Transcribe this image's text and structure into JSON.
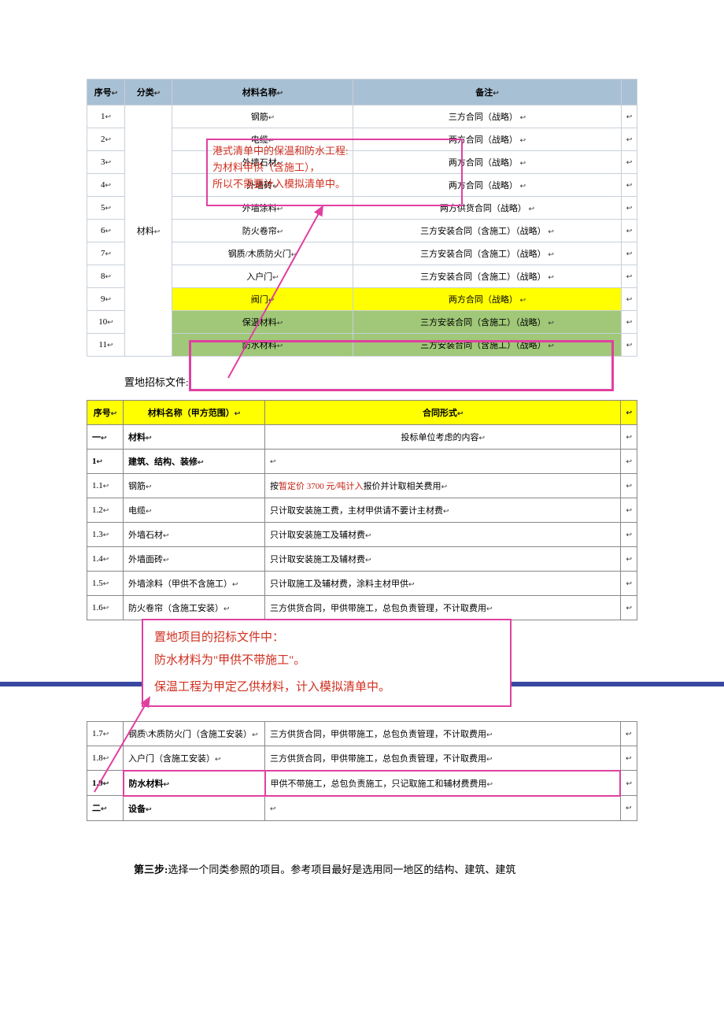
{
  "table1": {
    "headers": [
      "序号",
      "分类",
      "材料名称",
      "备注"
    ],
    "category_merged": "材料",
    "rows": [
      {
        "n": "1",
        "name": "钢筋",
        "note": "三方合同（战略）",
        "hl": ""
      },
      {
        "n": "2",
        "name": "电缆",
        "note": "两方合同（战略）",
        "hl": ""
      },
      {
        "n": "3",
        "name": "外墙石材",
        "note": "两方合同（战略）",
        "hl": ""
      },
      {
        "n": "4",
        "name": "外墙砖",
        "note": "两方合同（战略）",
        "hl": ""
      },
      {
        "n": "5",
        "name": "外墙涂料",
        "note": "两方供货合同（战略）",
        "hl": ""
      },
      {
        "n": "6",
        "name": "防火卷帘",
        "note": "三方安装合同（含施工）（战略）",
        "hl": ""
      },
      {
        "n": "7",
        "name": "钢质/木质防火门",
        "note": "三方安装合同（含施工）（战略）",
        "hl": ""
      },
      {
        "n": "8",
        "name": "入户门",
        "note": "三方安装合同（含施工）（战略）",
        "hl": ""
      },
      {
        "n": "9",
        "name": "阀门",
        "note": "两方合同（战略）",
        "hl": "yellow"
      },
      {
        "n": "10",
        "name": "保温材料",
        "note": "三方安装合同（含施工）（战略）",
        "hl": "green"
      },
      {
        "n": "11",
        "name": "防水材料",
        "note": "三方安装合同（含施工）（战略）",
        "hl": "green"
      }
    ],
    "colors": {
      "header_bg": "#a8c0d4",
      "border": "#c8d0d8",
      "yellow": "#ffff00",
      "green": "#a0c878",
      "callout_border": "#e040a0",
      "callout_text": "#d03020"
    }
  },
  "callout1": {
    "line1": "港式清单中的保温和防水工程:",
    "line2": "为材料甲供（含施工），",
    "line3": "所以不需要计入模拟清单中。"
  },
  "section_label": "置地招标文件:",
  "table2a": {
    "headers": [
      "序号",
      "材料名称（甲方范围）",
      "合同形式"
    ],
    "rows": [
      {
        "n": "一",
        "c1": "材料",
        "c2": "投标单位考虑的内容",
        "bold": true,
        "center2": true
      },
      {
        "n": "1",
        "c1": "建筑、结构、装修",
        "c2": "",
        "bold": true
      },
      {
        "n": "1.1",
        "c1": "钢筋",
        "c2": "按暂定价 3700 元/吨计入报价并计取相关费用"
      },
      {
        "n": "1.2",
        "c1": "电缆",
        "c2": "只计取安装施工费，主材甲供请不要计主材费"
      },
      {
        "n": "1.3",
        "c1": "外墙石材",
        "c2": "只计取安装施工及辅材费"
      },
      {
        "n": "1.4",
        "c1": "外墙面砖",
        "c2": "只计取安装施工及辅材费"
      },
      {
        "n": "1.5",
        "c1": "外墙涂料（甲供不含施工）",
        "c2": "只计取施工及辅材费，涂料主材甲供"
      },
      {
        "n": "1.6",
        "c1": "防火卷帘（含施工安装）",
        "c2": "三方供货合同，甲供带施工，总包负责管理，不计取费用"
      }
    ]
  },
  "callout2": {
    "line1": "置地项目的招标文件中：",
    "line2": "防水材料为\"甲供不带施工\"。",
    "line3": "保温工程为甲定乙供材料，计入模拟清单中。"
  },
  "table2b": {
    "rows": [
      {
        "n": "1.7",
        "c1": "钢质\\木质防火门（含施工安装）",
        "c2": "三方供货合同，甲供带施工，总包负责管理，不计取费用"
      },
      {
        "n": "1.8",
        "c1": "入户门（含施工安装）",
        "c2": "三方供货合同，甲供带施工，总包负责管理，不计取费用"
      },
      {
        "n": "1.9",
        "c1": "防水材料",
        "c2": "甲供不带施工，总包负责施工，只记取施工和辅材费费用",
        "hl": "pink",
        "bold": true
      },
      {
        "n": "二",
        "c1": "设备",
        "c2": "",
        "bold": true
      }
    ]
  },
  "footer": {
    "bold": "第三步:",
    "rest": "选择一个同类参照的项目。参考项目最好是选用同一地区的结构、建筑、建筑"
  },
  "highlight_price": "3700 元/吨计入"
}
